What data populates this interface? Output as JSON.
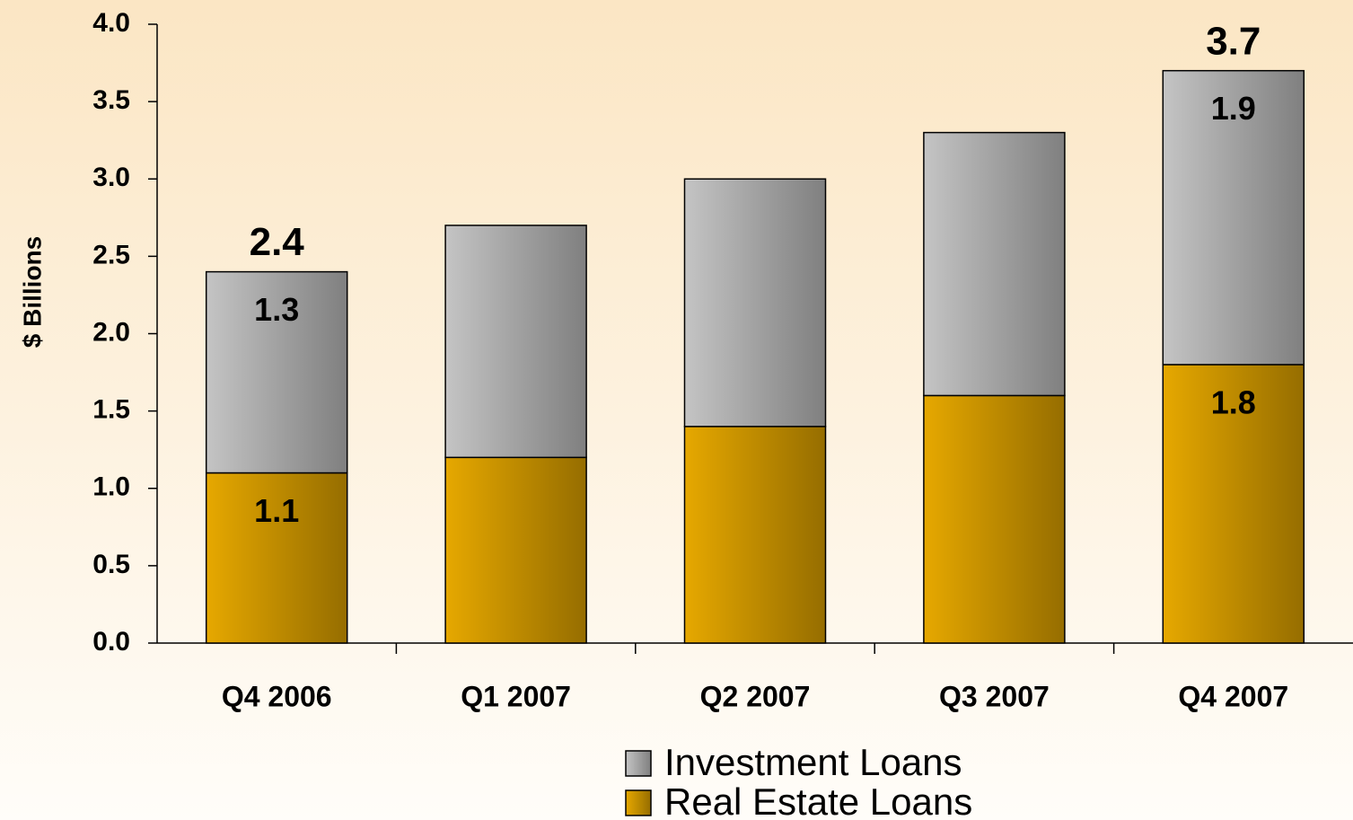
{
  "chart_data": {
    "type": "stacked_bar",
    "y_label": "$ Billions",
    "categories": [
      "Q4 2006",
      "Q1 2007",
      "Q2 2007",
      "Q3 2007",
      "Q4 2007"
    ],
    "series": [
      {
        "name": "Real Estate Loans",
        "color": "#e6a800",
        "values": [
          1.1,
          1.2,
          1.4,
          1.6,
          1.8
        ],
        "value_labels": [
          "1.1",
          null,
          null,
          null,
          "1.8"
        ]
      },
      {
        "name": "Investment Loans",
        "color": "#c4c4c4",
        "values": [
          1.3,
          1.5,
          1.6,
          1.7,
          1.9
        ],
        "value_labels": [
          "1.3",
          null,
          null,
          null,
          "1.9"
        ]
      }
    ],
    "totals": [
      2.4,
      null,
      null,
      null,
      3.7
    ],
    "ylim": [
      0,
      4
    ],
    "yticks": [
      {
        "value": 0,
        "label": "0.0"
      },
      0.5,
      {
        "value": 1,
        "label": "1.0"
      },
      1.5,
      {
        "value": 2,
        "label": "2.0"
      },
      2.5,
      {
        "value": 3,
        "label": "3.0"
      },
      3.5,
      {
        "value": 4,
        "label": "4.0"
      }
    ],
    "grid": false
  }
}
